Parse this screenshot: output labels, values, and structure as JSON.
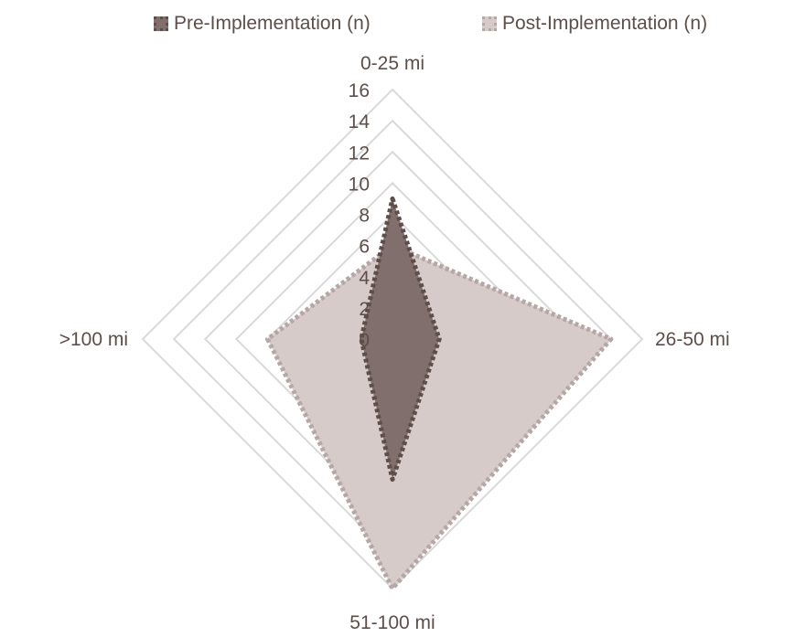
{
  "chart_data": {
    "type": "radar",
    "title": "",
    "categories": [
      "0-25 mi",
      "26-50 mi",
      "51-100 mi",
      ">100 mi"
    ],
    "series": [
      {
        "name": "Pre-Implementation (n)",
        "values": [
          9,
          3,
          9,
          2
        ],
        "fill": "#806f6c",
        "stroke": "#5e4e4a"
      },
      {
        "name": "Post-Implementation (n)",
        "values": [
          6,
          14,
          16,
          8
        ],
        "fill": "#d7cbc9",
        "stroke": "#b4a7a5"
      }
    ],
    "r_ticks": [
      "0",
      "2",
      "4",
      "6",
      "8",
      "10",
      "12",
      "14",
      "16"
    ],
    "r_range": [
      0,
      16
    ],
    "grid_step": 2,
    "grid_color": "#d9d9d9",
    "legend_position": "top"
  }
}
